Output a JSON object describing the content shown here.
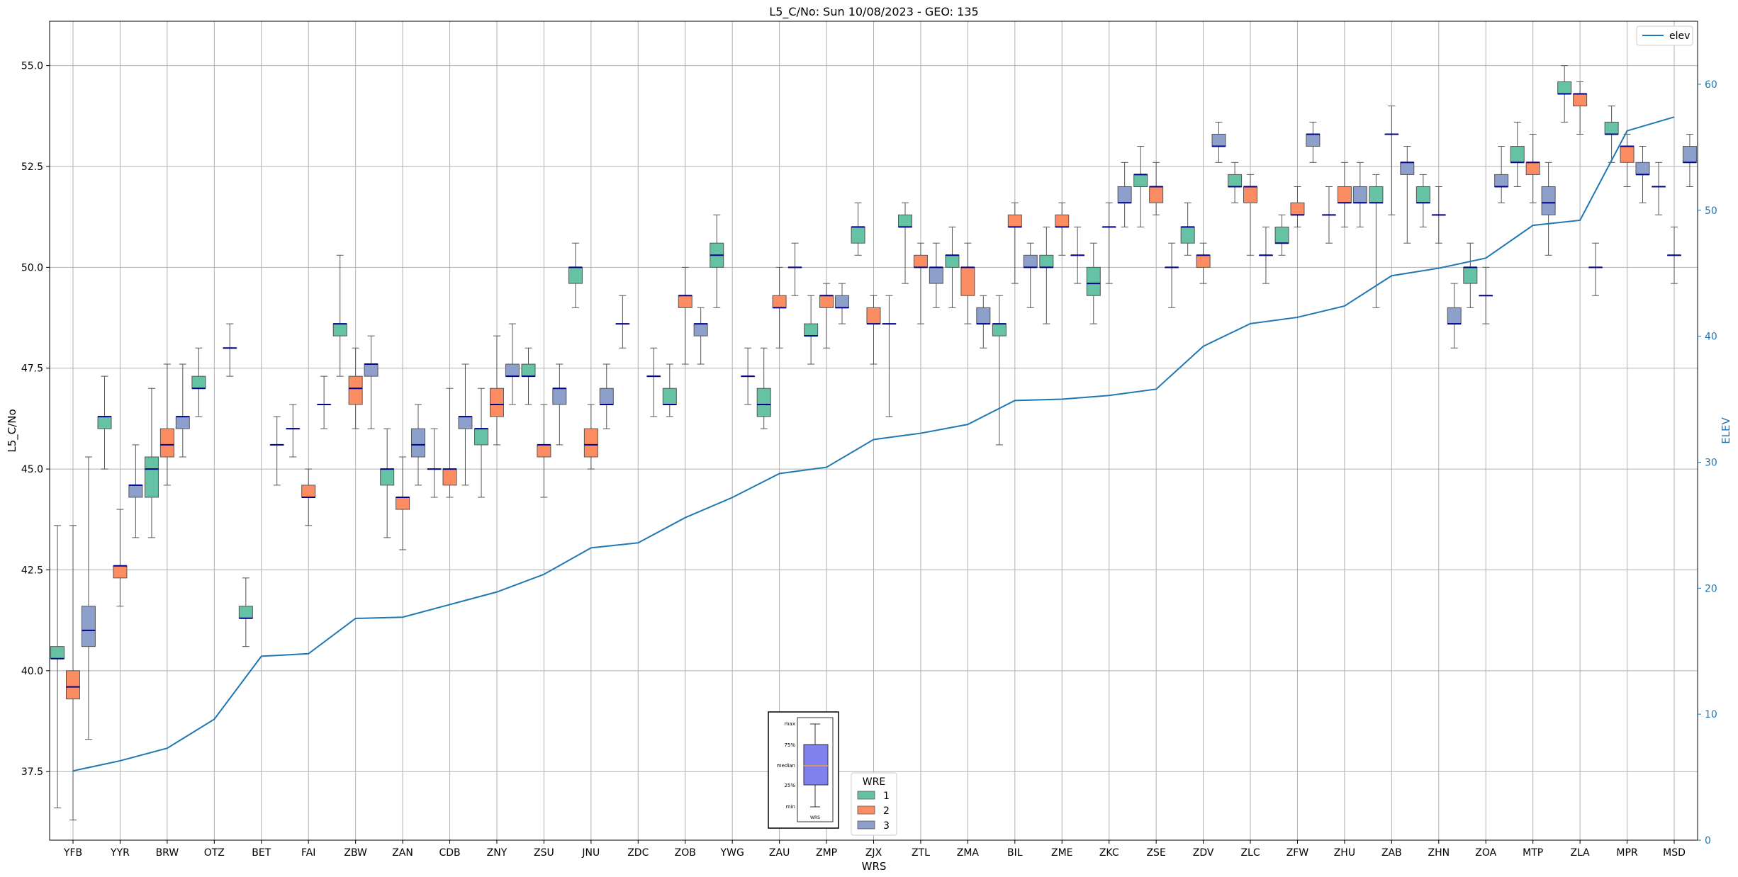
{
  "colors": {
    "wre1": "#66c2a5",
    "wre2": "#fc8d62",
    "wre3": "#8da0cb",
    "elev": "#1f77b4",
    "median": "#00008b",
    "grid": "#b0b0b0",
    "legend_example_box": "#8080ee",
    "legend_example_median": "#e8a040"
  },
  "chart_data": {
    "type": "box",
    "title": "L5_C/No: Sun 10/08/2023 - GEO: 135",
    "xlabel": "WRS",
    "ylabel": "L5_C/No",
    "y2label": "ELEV",
    "ylim": [
      35.8,
      56.1
    ],
    "y2lim": [
      0,
      65
    ],
    "yticks": [
      "37.5",
      "40.0",
      "42.5",
      "45.0",
      "47.5",
      "50.0",
      "52.5",
      "55.0"
    ],
    "y2ticks": [
      "0",
      "10",
      "20",
      "30",
      "40",
      "50",
      "60"
    ],
    "grid": true,
    "categories": [
      "YFB",
      "YYR",
      "BRW",
      "OTZ",
      "BET",
      "FAI",
      "ZBW",
      "ZAN",
      "CDB",
      "ZNY",
      "ZSU",
      "JNU",
      "ZDC",
      "ZOB",
      "YWG",
      "ZAU",
      "ZMP",
      "ZJX",
      "ZTL",
      "ZMA",
      "BIL",
      "ZME",
      "ZKC",
      "ZSE",
      "ZDV",
      "ZLC",
      "ZFW",
      "ZHU",
      "ZAB",
      "ZHN",
      "ZOA",
      "MTP",
      "ZLA",
      "MPR",
      "MSD"
    ],
    "wre_series": [
      "1",
      "2",
      "3"
    ],
    "boxes": [
      {
        "wrs": "YFB",
        "wre": "1",
        "min": 36.6,
        "q1": 40.3,
        "median": 40.3,
        "q3": 40.6,
        "max": 43.6
      },
      {
        "wrs": "YFB",
        "wre": "2",
        "min": 36.3,
        "q1": 39.3,
        "median": 39.6,
        "q3": 40.0,
        "max": 43.6
      },
      {
        "wrs": "YFB",
        "wre": "3",
        "min": 38.3,
        "q1": 40.6,
        "median": 41.0,
        "q3": 41.6,
        "max": 45.3
      },
      {
        "wrs": "YYR",
        "wre": "1",
        "min": 45.0,
        "q1": 46.0,
        "median": 46.3,
        "q3": 46.3,
        "max": 47.3
      },
      {
        "wrs": "YYR",
        "wre": "2",
        "min": 41.6,
        "q1": 42.3,
        "median": 42.6,
        "q3": 42.6,
        "max": 44.0
      },
      {
        "wrs": "YYR",
        "wre": "3",
        "min": 43.3,
        "q1": 44.3,
        "median": 44.6,
        "q3": 44.6,
        "max": 45.6
      },
      {
        "wrs": "BRW",
        "wre": "1",
        "min": 43.3,
        "q1": 44.3,
        "median": 45.0,
        "q3": 45.3,
        "max": 47.0
      },
      {
        "wrs": "BRW",
        "wre": "2",
        "min": 44.6,
        "q1": 45.3,
        "median": 45.6,
        "q3": 46.0,
        "max": 47.6
      },
      {
        "wrs": "BRW",
        "wre": "3",
        "min": 45.3,
        "q1": 46.0,
        "median": 46.3,
        "q3": 46.3,
        "max": 47.6
      },
      {
        "wrs": "OTZ",
        "wre": "1",
        "min": 46.3,
        "q1": 47.0,
        "median": 47.0,
        "q3": 47.3,
        "max": 48.0
      },
      {
        "wrs": "OTZ",
        "wre": "3",
        "min": 47.3,
        "q1": 48.0,
        "median": 48.0,
        "q3": 48.0,
        "max": 48.6
      },
      {
        "wrs": "BET",
        "wre": "1",
        "min": 40.6,
        "q1": 41.3,
        "median": 41.3,
        "q3": 41.6,
        "max": 42.3
      },
      {
        "wrs": "BET",
        "wre": "3",
        "min": 44.6,
        "q1": 45.6,
        "median": 45.6,
        "q3": 45.6,
        "max": 46.3
      },
      {
        "wrs": "FAI",
        "wre": "1",
        "min": 45.3,
        "q1": 46.0,
        "median": 46.0,
        "q3": 46.0,
        "max": 46.6
      },
      {
        "wrs": "FAI",
        "wre": "2",
        "min": 43.6,
        "q1": 44.3,
        "median": 44.3,
        "q3": 44.6,
        "max": 45.0
      },
      {
        "wrs": "FAI",
        "wre": "3",
        "min": 46.0,
        "q1": 46.6,
        "median": 46.6,
        "q3": 46.6,
        "max": 47.3
      },
      {
        "wrs": "ZBW",
        "wre": "1",
        "min": 47.3,
        "q1": 48.3,
        "median": 48.6,
        "q3": 48.6,
        "max": 50.3
      },
      {
        "wrs": "ZBW",
        "wre": "2",
        "min": 46.0,
        "q1": 46.6,
        "median": 47.0,
        "q3": 47.3,
        "max": 48.0
      },
      {
        "wrs": "ZBW",
        "wre": "3",
        "min": 46.0,
        "q1": 47.3,
        "median": 47.6,
        "q3": 47.6,
        "max": 48.3
      },
      {
        "wrs": "ZAN",
        "wre": "1",
        "min": 43.3,
        "q1": 44.6,
        "median": 45.0,
        "q3": 45.0,
        "max": 46.0
      },
      {
        "wrs": "ZAN",
        "wre": "2",
        "min": 43.0,
        "q1": 44.0,
        "median": 44.3,
        "q3": 44.3,
        "max": 45.3
      },
      {
        "wrs": "ZAN",
        "wre": "3",
        "min": 44.6,
        "q1": 45.3,
        "median": 45.6,
        "q3": 46.0,
        "max": 46.6
      },
      {
        "wrs": "CDB",
        "wre": "1",
        "min": 44.3,
        "q1": 45.0,
        "median": 45.0,
        "q3": 45.0,
        "max": 46.0
      },
      {
        "wrs": "CDB",
        "wre": "2",
        "min": 44.3,
        "q1": 44.6,
        "median": 45.0,
        "q3": 45.0,
        "max": 47.0
      },
      {
        "wrs": "CDB",
        "wre": "3",
        "min": 44.6,
        "q1": 46.0,
        "median": 46.3,
        "q3": 46.3,
        "max": 47.6
      },
      {
        "wrs": "ZNY",
        "wre": "1",
        "min": 44.3,
        "q1": 45.6,
        "median": 46.0,
        "q3": 46.0,
        "max": 47.0
      },
      {
        "wrs": "ZNY",
        "wre": "2",
        "min": 45.6,
        "q1": 46.3,
        "median": 46.6,
        "q3": 47.0,
        "max": 48.3
      },
      {
        "wrs": "ZNY",
        "wre": "3",
        "min": 46.6,
        "q1": 47.3,
        "median": 47.3,
        "q3": 47.6,
        "max": 48.6
      },
      {
        "wrs": "ZSU",
        "wre": "1",
        "min": 46.6,
        "q1": 47.3,
        "median": 47.3,
        "q3": 47.6,
        "max": 48.0
      },
      {
        "wrs": "ZSU",
        "wre": "2",
        "min": 44.3,
        "q1": 45.3,
        "median": 45.6,
        "q3": 45.6,
        "max": 46.6
      },
      {
        "wrs": "ZSU",
        "wre": "3",
        "min": 45.6,
        "q1": 46.6,
        "median": 47.0,
        "q3": 47.0,
        "max": 47.6
      },
      {
        "wrs": "JNU",
        "wre": "1",
        "min": 49.0,
        "q1": 49.6,
        "median": 50.0,
        "q3": 50.0,
        "max": 50.6
      },
      {
        "wrs": "JNU",
        "wre": "2",
        "min": 45.0,
        "q1": 45.3,
        "median": 45.6,
        "q3": 46.0,
        "max": 46.6
      },
      {
        "wrs": "JNU",
        "wre": "3",
        "min": 46.0,
        "q1": 46.6,
        "median": 46.6,
        "q3": 47.0,
        "max": 47.6
      },
      {
        "wrs": "ZDC",
        "wre": "1",
        "min": 48.0,
        "q1": 48.6,
        "median": 48.6,
        "q3": 48.6,
        "max": 49.3
      },
      {
        "wrs": "ZDC",
        "wre": "3",
        "min": 46.3,
        "q1": 47.3,
        "median": 47.3,
        "q3": 47.3,
        "max": 48.0
      },
      {
        "wrs": "ZOB",
        "wre": "1",
        "min": 46.3,
        "q1": 46.6,
        "median": 46.6,
        "q3": 47.0,
        "max": 47.6
      },
      {
        "wrs": "ZOB",
        "wre": "2",
        "min": 47.6,
        "q1": 49.0,
        "median": 49.3,
        "q3": 49.3,
        "max": 50.0
      },
      {
        "wrs": "ZOB",
        "wre": "3",
        "min": 47.6,
        "q1": 48.3,
        "median": 48.6,
        "q3": 48.6,
        "max": 49.0
      },
      {
        "wrs": "YWG",
        "wre": "1",
        "min": 49.0,
        "q1": 50.0,
        "median": 50.3,
        "q3": 50.6,
        "max": 51.3
      },
      {
        "wrs": "YWG",
        "wre": "3",
        "min": 46.6,
        "q1": 47.3,
        "median": 47.3,
        "q3": 47.3,
        "max": 48.0
      },
      {
        "wrs": "ZAU",
        "wre": "1",
        "min": 46.0,
        "q1": 46.3,
        "median": 46.6,
        "q3": 47.0,
        "max": 48.0
      },
      {
        "wrs": "ZAU",
        "wre": "2",
        "min": 48.0,
        "q1": 49.0,
        "median": 49.0,
        "q3": 49.3,
        "max": 50.0
      },
      {
        "wrs": "ZAU",
        "wre": "3",
        "min": 49.3,
        "q1": 50.0,
        "median": 50.0,
        "q3": 50.0,
        "max": 50.6
      },
      {
        "wrs": "ZMP",
        "wre": "1",
        "min": 47.6,
        "q1": 48.3,
        "median": 48.3,
        "q3": 48.6,
        "max": 49.3
      },
      {
        "wrs": "ZMP",
        "wre": "2",
        "min": 48.0,
        "q1": 49.0,
        "median": 49.3,
        "q3": 49.3,
        "max": 49.6
      },
      {
        "wrs": "ZMP",
        "wre": "3",
        "min": 48.6,
        "q1": 49.0,
        "median": 49.0,
        "q3": 49.3,
        "max": 49.6
      },
      {
        "wrs": "ZJX",
        "wre": "1",
        "min": 50.3,
        "q1": 50.6,
        "median": 51.0,
        "q3": 51.0,
        "max": 51.6
      },
      {
        "wrs": "ZJX",
        "wre": "2",
        "min": 47.6,
        "q1": 48.6,
        "median": 48.6,
        "q3": 49.0,
        "max": 49.3
      },
      {
        "wrs": "ZJX",
        "wre": "3",
        "min": 46.3,
        "q1": 48.6,
        "median": 48.6,
        "q3": 48.6,
        "max": 49.3
      },
      {
        "wrs": "ZTL",
        "wre": "1",
        "min": 49.6,
        "q1": 51.0,
        "median": 51.0,
        "q3": 51.3,
        "max": 51.6
      },
      {
        "wrs": "ZTL",
        "wre": "2",
        "min": 48.6,
        "q1": 50.0,
        "median": 50.0,
        "q3": 50.3,
        "max": 50.6
      },
      {
        "wrs": "ZTL",
        "wre": "3",
        "min": 49.0,
        "q1": 49.6,
        "median": 50.0,
        "q3": 50.0,
        "max": 50.6
      },
      {
        "wrs": "ZMA",
        "wre": "1",
        "min": 49.0,
        "q1": 50.0,
        "median": 50.3,
        "q3": 50.3,
        "max": 51.0
      },
      {
        "wrs": "ZMA",
        "wre": "2",
        "min": 48.6,
        "q1": 49.3,
        "median": 50.0,
        "q3": 50.0,
        "max": 50.6
      },
      {
        "wrs": "ZMA",
        "wre": "3",
        "min": 48.0,
        "q1": 48.6,
        "median": 48.6,
        "q3": 49.0,
        "max": 49.3
      },
      {
        "wrs": "BIL",
        "wre": "1",
        "min": 45.6,
        "q1": 48.3,
        "median": 48.6,
        "q3": 48.6,
        "max": 49.3
      },
      {
        "wrs": "BIL",
        "wre": "2",
        "min": 49.6,
        "q1": 51.0,
        "median": 51.0,
        "q3": 51.3,
        "max": 51.6
      },
      {
        "wrs": "BIL",
        "wre": "3",
        "min": 49.0,
        "q1": 50.0,
        "median": 50.0,
        "q3": 50.3,
        "max": 50.6
      },
      {
        "wrs": "ZME",
        "wre": "1",
        "min": 48.6,
        "q1": 50.0,
        "median": 50.0,
        "q3": 50.3,
        "max": 51.0
      },
      {
        "wrs": "ZME",
        "wre": "2",
        "min": 50.3,
        "q1": 51.0,
        "median": 51.0,
        "q3": 51.3,
        "max": 51.6
      },
      {
        "wrs": "ZME",
        "wre": "3",
        "min": 49.6,
        "q1": 50.3,
        "median": 50.3,
        "q3": 50.3,
        "max": 51.0
      },
      {
        "wrs": "ZKC",
        "wre": "1",
        "min": 48.6,
        "q1": 49.3,
        "median": 49.6,
        "q3": 50.0,
        "max": 50.6
      },
      {
        "wrs": "ZKC",
        "wre": "2",
        "min": 49.6,
        "q1": 51.0,
        "median": 51.0,
        "q3": 51.0,
        "max": 51.6
      },
      {
        "wrs": "ZKC",
        "wre": "3",
        "min": 51.0,
        "q1": 51.6,
        "median": 51.6,
        "q3": 52.0,
        "max": 52.6
      },
      {
        "wrs": "ZSE",
        "wre": "1",
        "min": 51.0,
        "q1": 52.0,
        "median": 52.3,
        "q3": 52.3,
        "max": 53.0
      },
      {
        "wrs": "ZSE",
        "wre": "2",
        "min": 51.3,
        "q1": 51.6,
        "median": 52.0,
        "q3": 52.0,
        "max": 52.6
      },
      {
        "wrs": "ZSE",
        "wre": "3",
        "min": 49.0,
        "q1": 50.0,
        "median": 50.0,
        "q3": 50.0,
        "max": 50.6
      },
      {
        "wrs": "ZDV",
        "wre": "1",
        "min": 50.3,
        "q1": 50.6,
        "median": 51.0,
        "q3": 51.0,
        "max": 51.6
      },
      {
        "wrs": "ZDV",
        "wre": "2",
        "min": 49.6,
        "q1": 50.0,
        "median": 50.3,
        "q3": 50.3,
        "max": 50.6
      },
      {
        "wrs": "ZDV",
        "wre": "3",
        "min": 52.6,
        "q1": 53.0,
        "median": 53.0,
        "q3": 53.3,
        "max": 53.6
      },
      {
        "wrs": "ZLC",
        "wre": "1",
        "min": 51.6,
        "q1": 52.0,
        "median": 52.0,
        "q3": 52.3,
        "max": 52.6
      },
      {
        "wrs": "ZLC",
        "wre": "2",
        "min": 50.3,
        "q1": 51.6,
        "median": 52.0,
        "q3": 52.0,
        "max": 52.3
      },
      {
        "wrs": "ZLC",
        "wre": "3",
        "min": 49.6,
        "q1": 50.3,
        "median": 50.3,
        "q3": 50.3,
        "max": 51.0
      },
      {
        "wrs": "ZFW",
        "wre": "1",
        "min": 50.3,
        "q1": 50.6,
        "median": 50.6,
        "q3": 51.0,
        "max": 51.3
      },
      {
        "wrs": "ZFW",
        "wre": "2",
        "min": 51.0,
        "q1": 51.3,
        "median": 51.3,
        "q3": 51.6,
        "max": 52.0
      },
      {
        "wrs": "ZFW",
        "wre": "3",
        "min": 52.6,
        "q1": 53.0,
        "median": 53.3,
        "q3": 53.3,
        "max": 53.6
      },
      {
        "wrs": "ZHU",
        "wre": "1",
        "min": 50.6,
        "q1": 51.3,
        "median": 51.3,
        "q3": 51.3,
        "max": 52.0
      },
      {
        "wrs": "ZHU",
        "wre": "2",
        "min": 51.0,
        "q1": 51.6,
        "median": 51.6,
        "q3": 52.0,
        "max": 52.6
      },
      {
        "wrs": "ZHU",
        "wre": "3",
        "min": 51.0,
        "q1": 51.6,
        "median": 51.6,
        "q3": 52.0,
        "max": 52.6
      },
      {
        "wrs": "ZAB",
        "wre": "1",
        "min": 49.0,
        "q1": 51.6,
        "median": 51.6,
        "q3": 52.0,
        "max": 52.3
      },
      {
        "wrs": "ZAB",
        "wre": "2",
        "min": 51.3,
        "q1": 53.3,
        "median": 53.3,
        "q3": 53.3,
        "max": 54.0
      },
      {
        "wrs": "ZAB",
        "wre": "3",
        "min": 50.6,
        "q1": 52.3,
        "median": 52.6,
        "q3": 52.6,
        "max": 53.0
      },
      {
        "wrs": "ZHN",
        "wre": "1",
        "min": 51.0,
        "q1": 51.6,
        "median": 51.6,
        "q3": 52.0,
        "max": 52.3
      },
      {
        "wrs": "ZHN",
        "wre": "2",
        "min": 50.6,
        "q1": 51.3,
        "median": 51.3,
        "q3": 51.3,
        "max": 52.0
      },
      {
        "wrs": "ZHN",
        "wre": "3",
        "min": 48.0,
        "q1": 48.6,
        "median": 48.6,
        "q3": 49.0,
        "max": 49.6
      },
      {
        "wrs": "ZOA",
        "wre": "1",
        "min": 49.0,
        "q1": 49.6,
        "median": 50.0,
        "q3": 50.0,
        "max": 50.6
      },
      {
        "wrs": "ZOA",
        "wre": "2",
        "min": 48.6,
        "q1": 49.3,
        "median": 49.3,
        "q3": 49.3,
        "max": 50.0
      },
      {
        "wrs": "ZOA",
        "wre": "3",
        "min": 51.6,
        "q1": 52.0,
        "median": 52.0,
        "q3": 52.3,
        "max": 53.0
      },
      {
        "wrs": "MTP",
        "wre": "1",
        "min": 52.0,
        "q1": 52.6,
        "median": 52.6,
        "q3": 53.0,
        "max": 53.6
      },
      {
        "wrs": "MTP",
        "wre": "2",
        "min": 51.6,
        "q1": 52.3,
        "median": 52.6,
        "q3": 52.6,
        "max": 53.3
      },
      {
        "wrs": "MTP",
        "wre": "3",
        "min": 50.3,
        "q1": 51.3,
        "median": 51.6,
        "q3": 52.0,
        "max": 52.6
      },
      {
        "wrs": "ZLA",
        "wre": "1",
        "min": 53.6,
        "q1": 54.3,
        "median": 54.3,
        "q3": 54.6,
        "max": 55.0
      },
      {
        "wrs": "ZLA",
        "wre": "2",
        "min": 53.3,
        "q1": 54.0,
        "median": 54.3,
        "q3": 54.3,
        "max": 54.6
      },
      {
        "wrs": "ZLA",
        "wre": "3",
        "min": 49.3,
        "q1": 50.0,
        "median": 50.0,
        "q3": 50.0,
        "max": 50.6
      },
      {
        "wrs": "MPR",
        "wre": "1",
        "min": 52.6,
        "q1": 53.3,
        "median": 53.3,
        "q3": 53.6,
        "max": 54.0
      },
      {
        "wrs": "MPR",
        "wre": "2",
        "min": 52.0,
        "q1": 52.6,
        "median": 53.0,
        "q3": 53.0,
        "max": 53.3
      },
      {
        "wrs": "MPR",
        "wre": "3",
        "min": 51.6,
        "q1": 52.3,
        "median": 52.3,
        "q3": 52.6,
        "max": 53.0
      },
      {
        "wrs": "MSD",
        "wre": "1",
        "min": 51.3,
        "q1": 52.0,
        "median": 52.0,
        "q3": 52.0,
        "max": 52.6
      },
      {
        "wrs": "MSD",
        "wre": "2",
        "min": 49.6,
        "q1": 50.3,
        "median": 50.3,
        "q3": 50.3,
        "max": 51.0
      },
      {
        "wrs": "MSD",
        "wre": "3",
        "min": 52.0,
        "q1": 52.6,
        "median": 52.6,
        "q3": 53.0,
        "max": 53.3
      }
    ],
    "elev_series": {
      "name": "elev",
      "axis": "right",
      "values": [
        5.5,
        6.3,
        7.3,
        9.6,
        14.6,
        14.8,
        17.6,
        17.7,
        18.7,
        19.7,
        21.1,
        23.2,
        23.6,
        25.6,
        27.2,
        29.1,
        29.6,
        31.8,
        32.3,
        33.0,
        34.9,
        35.0,
        35.3,
        35.8,
        39.2,
        41.0,
        41.5,
        42.4,
        44.8,
        45.4,
        46.2,
        48.8,
        49.2,
        56.3,
        57.4
      ]
    }
  },
  "legend": {
    "line_label": "elev",
    "wre_title": "WRE",
    "wre_labels": [
      "1",
      "2",
      "3"
    ]
  },
  "boxplot_key": {
    "max": "max",
    "q3": "75%",
    "median": "median",
    "q1": "25%",
    "min": "min",
    "xlabel": "WRS"
  }
}
